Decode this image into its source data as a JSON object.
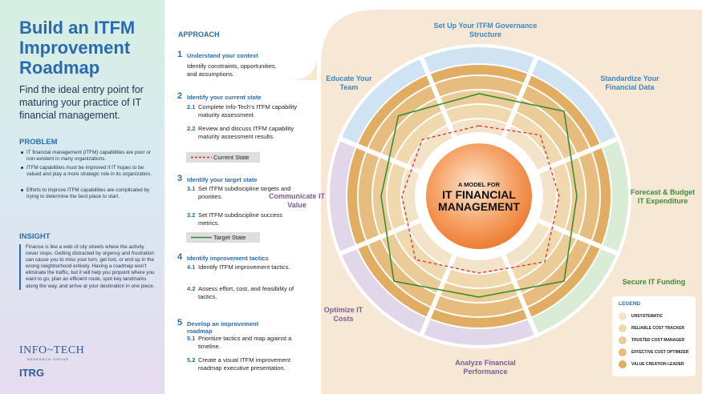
{
  "header": {
    "title": "Build an ITFM Improvement Roadmap",
    "subtitle": "Find the ideal entry point for maturing your practice of IT financial management."
  },
  "problem": {
    "heading": "PROBLEM",
    "items": [
      "IT financial management (ITFM) capabilities are poor or non-existent in many organizations.",
      "ITFM capabilities must be improved if IT hopes to be valued and play a more strategic role in its organization.",
      "Efforts to improve ITFM capabilities are complicated by trying to determine the best place to start."
    ]
  },
  "insight": {
    "heading": "INSIGHT",
    "text": "Finance is like a web of city streets where the activity never stops. Getting distracted by urgency and frustration can cause you to miss your turn, get lost, or end up in the wrong neighborhood entirely. Having a roadmap won't eliminate the traffic, but it will help you pinpoint where you want to go, plan an efficient route, spot key landmarks along the way, and arrive at your destination in one piece."
  },
  "logos": {
    "primary": "INFO~TECH",
    "tagline": "RESEARCH GROUP",
    "secondary": "ITRG"
  },
  "approach": {
    "heading": "APPROACH",
    "steps": [
      {
        "number": "1",
        "title": "Understand your context",
        "text": "Identify constraints, opportunities, and assumptions.",
        "substeps": []
      },
      {
        "number": "2",
        "title": "Identify your current state",
        "substeps": [
          {
            "number": "2.1",
            "text": "Complete Info-Tech's ITFM capability maturity assessment."
          },
          {
            "number": "2.2",
            "text": "Review and discuss ITFM capability maturity assessment results."
          }
        ],
        "legend": "Current State"
      },
      {
        "number": "3",
        "title": "Identify your target state",
        "substeps": [
          {
            "number": "3.1",
            "text": "Set ITFM subdiscipline targets and priorities."
          },
          {
            "number": "3.2",
            "text": "Set ITFM subdiscipline success metrics."
          }
        ],
        "legend": "Target State"
      },
      {
        "number": "4",
        "title": "Identify improvement tactics",
        "substeps": [
          {
            "number": "4.1",
            "text": "Identify ITFM improvement tactics."
          },
          {
            "number": "4.2",
            "text": "Assess effort, cost, and feasibility of tactics."
          }
        ]
      },
      {
        "number": "5",
        "title": "Develop an improvement roadmap",
        "substeps": [
          {
            "number": "5.1",
            "text": "Prioritize tactics and map against a timeline."
          },
          {
            "number": "5.2",
            "text": "Create a visual ITFM improvement roadmap executive presentation."
          }
        ]
      }
    ]
  },
  "model": {
    "center_top": "A MODEL FOR",
    "center_main": "IT FINANCIAL MANAGEMENT",
    "sectors": [
      "Set Up Your ITFM Governance Structure",
      "Standardize Your Financial Data",
      "Forecast & Budget IT Expenditure",
      "Secure IT Funding",
      "Analyze Financial Performance",
      "Optimize IT Costs",
      "Communicate IT Value",
      "Educate Your Team"
    ],
    "legend": {
      "title": "LEGEND",
      "items": [
        "UNSYSTEMATIC",
        "RELIABLE COST TRACKER",
        "TRUSTED COST MANAGER",
        "EFFECTIVE COST OPTIMIZER",
        "VALUE CREATION LEADER"
      ]
    }
  }
}
